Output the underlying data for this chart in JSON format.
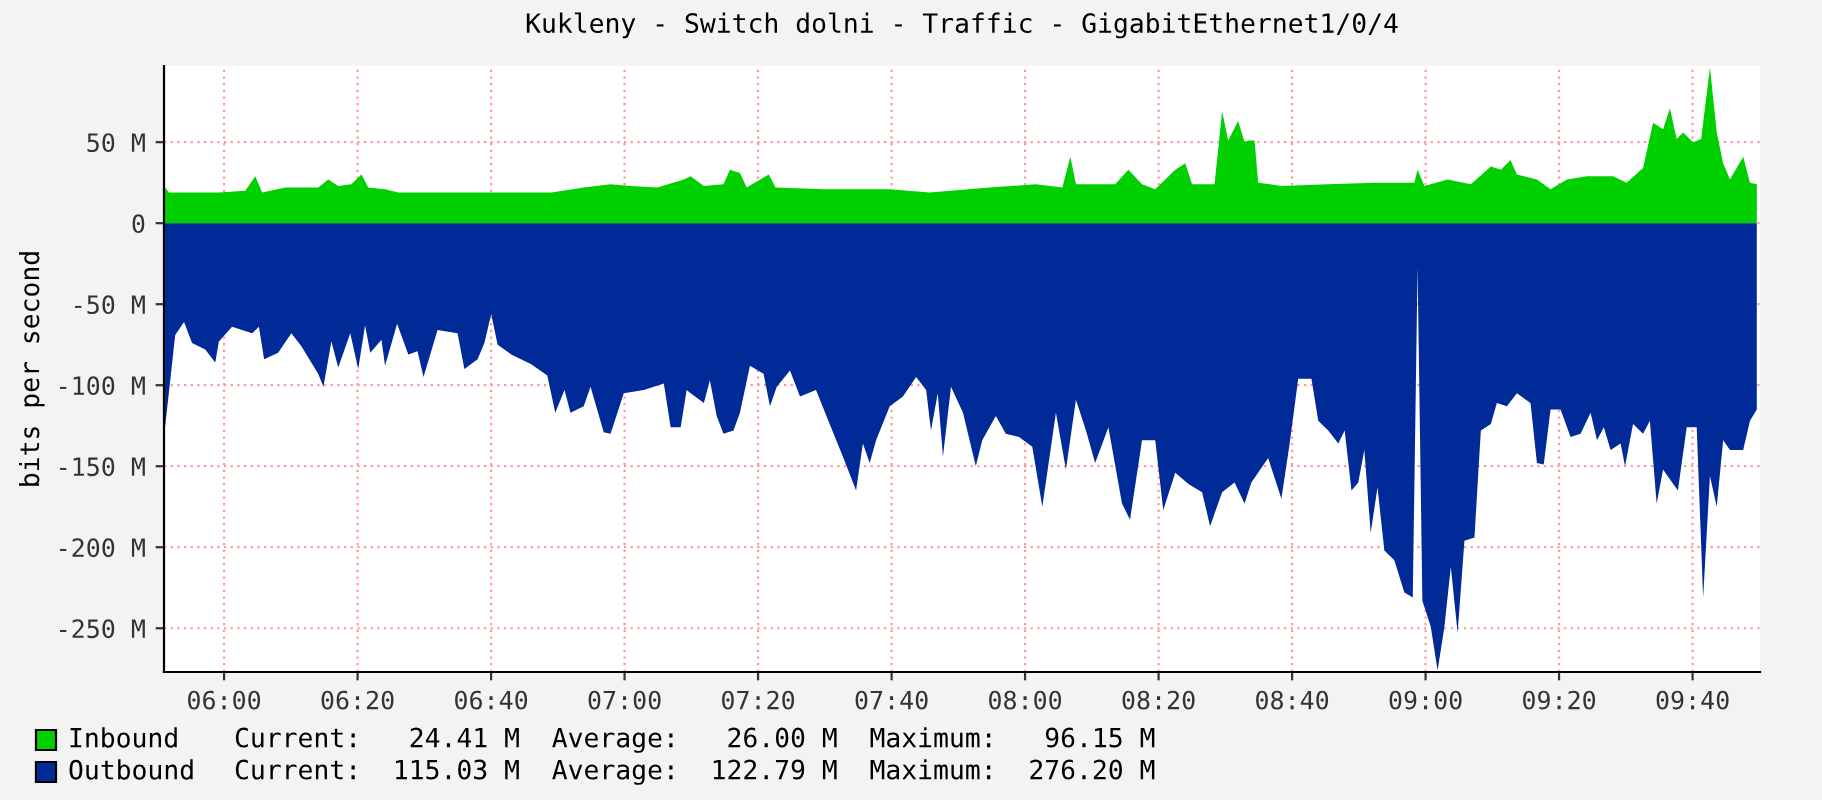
{
  "chart_data": {
    "type": "area",
    "title": "Kukleny - Switch dolni - Traffic - GigabitEthernet1/0/4",
    "ylabel": "bits per second",
    "xlim": [
      5.85,
      9.835
    ],
    "xticks": [
      {
        "value": 6,
        "label": "06:00"
      },
      {
        "value": 6.3333,
        "label": "06:20"
      },
      {
        "value": 6.6667,
        "label": "06:40"
      },
      {
        "value": 7,
        "label": "07:00"
      },
      {
        "value": 7.3333,
        "label": "07:20"
      },
      {
        "value": 7.6667,
        "label": "07:40"
      },
      {
        "value": 8,
        "label": "08:00"
      },
      {
        "value": 8.3333,
        "label": "08:20"
      },
      {
        "value": 8.6667,
        "label": "08:40"
      },
      {
        "value": 9,
        "label": "09:00"
      },
      {
        "value": 9.3333,
        "label": "09:20"
      },
      {
        "value": 9.6667,
        "label": "09:40"
      }
    ],
    "ylim": [
      -277,
      97
    ],
    "yticks": [
      {
        "value": 50,
        "label": "50 M"
      },
      0,
      {
        "value": -50,
        "label": "-50 M"
      },
      {
        "value": -100,
        "label": "-100 M"
      },
      {
        "value": -150,
        "label": "-150 M"
      },
      {
        "value": -200,
        "label": "-200 M"
      },
      {
        "value": -250,
        "label": "-250 M"
      }
    ],
    "grid": true,
    "legend": "bottom",
    "annotations": [
      "Current:   24.41 M  Average:   26.00 M  Maximum:   96.15 M",
      "Current:  115.03 M  Average:  122.79 M  Maximum:  276.20 M"
    ],
    "series": [
      {
        "name": "Inbound",
        "color": "#00cf00",
        "x": [
          5.85,
          5.862,
          5.92,
          5.987,
          6.053,
          6.078,
          6.095,
          6.153,
          6.235,
          6.26,
          6.285,
          6.318,
          6.343,
          6.36,
          6.402,
          6.435,
          6.567,
          6.733,
          6.817,
          6.898,
          6.965,
          7.015,
          7.082,
          7.148,
          7.165,
          7.198,
          7.247,
          7.263,
          7.288,
          7.305,
          7.36,
          7.377,
          7.497,
          7.662,
          7.762,
          7.91,
          8.027,
          8.093,
          8.113,
          8.127,
          8.225,
          8.258,
          8.292,
          8.325,
          8.375,
          8.4,
          8.417,
          8.473,
          8.492,
          8.507,
          8.532,
          8.548,
          8.557,
          8.573,
          8.582,
          8.64,
          8.757,
          8.872,
          8.972,
          8.98,
          8.997,
          9.055,
          9.113,
          9.163,
          9.188,
          9.212,
          9.228,
          9.278,
          9.312,
          9.353,
          9.403,
          9.468,
          9.502,
          9.543,
          9.568,
          9.593,
          9.61,
          9.627,
          9.643,
          9.668,
          9.688,
          9.71,
          9.727,
          9.743,
          9.76,
          9.793,
          9.81,
          9.827
        ],
        "values": [
          23,
          19,
          19,
          19,
          20,
          29,
          19,
          22,
          22,
          27,
          23,
          24,
          30,
          22,
          21,
          19,
          19,
          19,
          19,
          22,
          24,
          23,
          22,
          27,
          29,
          23,
          24,
          33,
          31,
          22,
          30,
          22,
          21,
          21,
          19,
          22,
          24,
          22,
          41,
          24,
          24,
          33,
          24,
          21,
          33,
          37,
          24,
          24,
          69,
          51,
          63,
          50,
          51,
          51,
          25,
          23,
          24,
          25,
          25,
          33,
          23,
          27,
          24,
          35,
          33,
          39,
          30,
          27,
          21,
          27,
          29,
          29,
          25,
          34,
          62,
          58,
          71,
          52,
          56,
          50,
          52,
          96,
          56,
          37,
          27,
          41,
          25,
          24
        ]
      },
      {
        "name": "Outbound",
        "color": "#002a97",
        "x": [
          5.85,
          5.862,
          5.878,
          5.9,
          5.92,
          5.953,
          5.978,
          5.987,
          6.02,
          6.07,
          6.087,
          6.1,
          6.135,
          6.168,
          6.193,
          6.235,
          6.248,
          6.268,
          6.285,
          6.315,
          6.335,
          6.352,
          6.365,
          6.393,
          6.402,
          6.432,
          6.46,
          6.483,
          6.498,
          6.533,
          6.583,
          6.6,
          6.633,
          6.65,
          6.667,
          6.683,
          6.717,
          6.767,
          6.807,
          6.827,
          6.85,
          6.865,
          6.898,
          6.915,
          6.948,
          6.965,
          6.998,
          7.048,
          7.098,
          7.115,
          7.14,
          7.155,
          7.165,
          7.198,
          7.213,
          7.23,
          7.247,
          7.272,
          7.288,
          7.313,
          7.347,
          7.363,
          7.38,
          7.413,
          7.438,
          7.478,
          7.512,
          7.545,
          7.578,
          7.595,
          7.612,
          7.628,
          7.662,
          7.695,
          7.728,
          7.753,
          7.765,
          7.782,
          7.795,
          7.815,
          7.845,
          7.877,
          7.893,
          7.927,
          7.952,
          7.985,
          8.018,
          8.043,
          8.077,
          8.102,
          8.127,
          8.152,
          8.175,
          8.208,
          8.242,
          8.262,
          8.292,
          8.325,
          8.345,
          8.375,
          8.408,
          8.442,
          8.462,
          8.492,
          8.523,
          8.548,
          8.565,
          8.607,
          8.64,
          8.66,
          8.682,
          8.715,
          8.732,
          8.757,
          8.782,
          8.798,
          8.815,
          8.832,
          8.847,
          8.863,
          8.88,
          8.897,
          8.922,
          8.947,
          8.968,
          8.98,
          8.992,
          9.013,
          9.03,
          9.047,
          9.063,
          9.08,
          9.097,
          9.122,
          9.138,
          9.163,
          9.178,
          9.203,
          9.228,
          9.262,
          9.278,
          9.295,
          9.312,
          9.337,
          9.362,
          9.387,
          9.412,
          9.428,
          9.445,
          9.462,
          9.487,
          9.498,
          9.518,
          9.543,
          9.56,
          9.577,
          9.593,
          9.61,
          9.63,
          9.652,
          9.677,
          9.693,
          9.71,
          9.727,
          9.743,
          9.76,
          9.793,
          9.81,
          9.827
        ],
        "values": [
          -132,
          -105,
          -69,
          -61,
          -74,
          -78,
          -86,
          -73,
          -64,
          -68,
          -64,
          -84,
          -80,
          -68,
          -76,
          -93,
          -101,
          -73,
          -89,
          -68,
          -90,
          -63,
          -80,
          -72,
          -88,
          -62,
          -81,
          -79,
          -95,
          -66,
          -68,
          -90,
          -84,
          -74,
          -56,
          -75,
          -81,
          -87,
          -94,
          -117,
          -103,
          -117,
          -113,
          -101,
          -129,
          -130,
          -105,
          -103,
          -99,
          -126,
          -126,
          -103,
          -105,
          -111,
          -97,
          -119,
          -130,
          -128,
          -117,
          -88,
          -93,
          -113,
          -101,
          -91,
          -107,
          -103,
          -124,
          -144,
          -165,
          -136,
          -148,
          -134,
          -113,
          -107,
          -95,
          -103,
          -128,
          -105,
          -144,
          -101,
          -117,
          -150,
          -134,
          -119,
          -130,
          -132,
          -138,
          -175,
          -117,
          -152,
          -109,
          -128,
          -148,
          -126,
          -173,
          -183,
          -134,
          -134,
          -177,
          -154,
          -161,
          -166,
          -187,
          -166,
          -160,
          -173,
          -160,
          -145,
          -170,
          -137,
          -96,
          -96,
          -122,
          -128,
          -136,
          -128,
          -165,
          -160,
          -140,
          -191,
          -163,
          -202,
          -208,
          -228,
          -231,
          -27,
          -233,
          -249,
          -276,
          -249,
          -212,
          -253,
          -196,
          -194,
          -128,
          -124,
          -111,
          -113,
          -105,
          -111,
          -148,
          -149,
          -115,
          -115,
          -132,
          -130,
          -117,
          -134,
          -126,
          -140,
          -136,
          -150,
          -124,
          -130,
          -122,
          -173,
          -152,
          -158,
          -165,
          -126,
          -126,
          -231,
          -156,
          -175,
          -134,
          -140,
          -140,
          -122,
          -115
        ]
      }
    ]
  }
}
